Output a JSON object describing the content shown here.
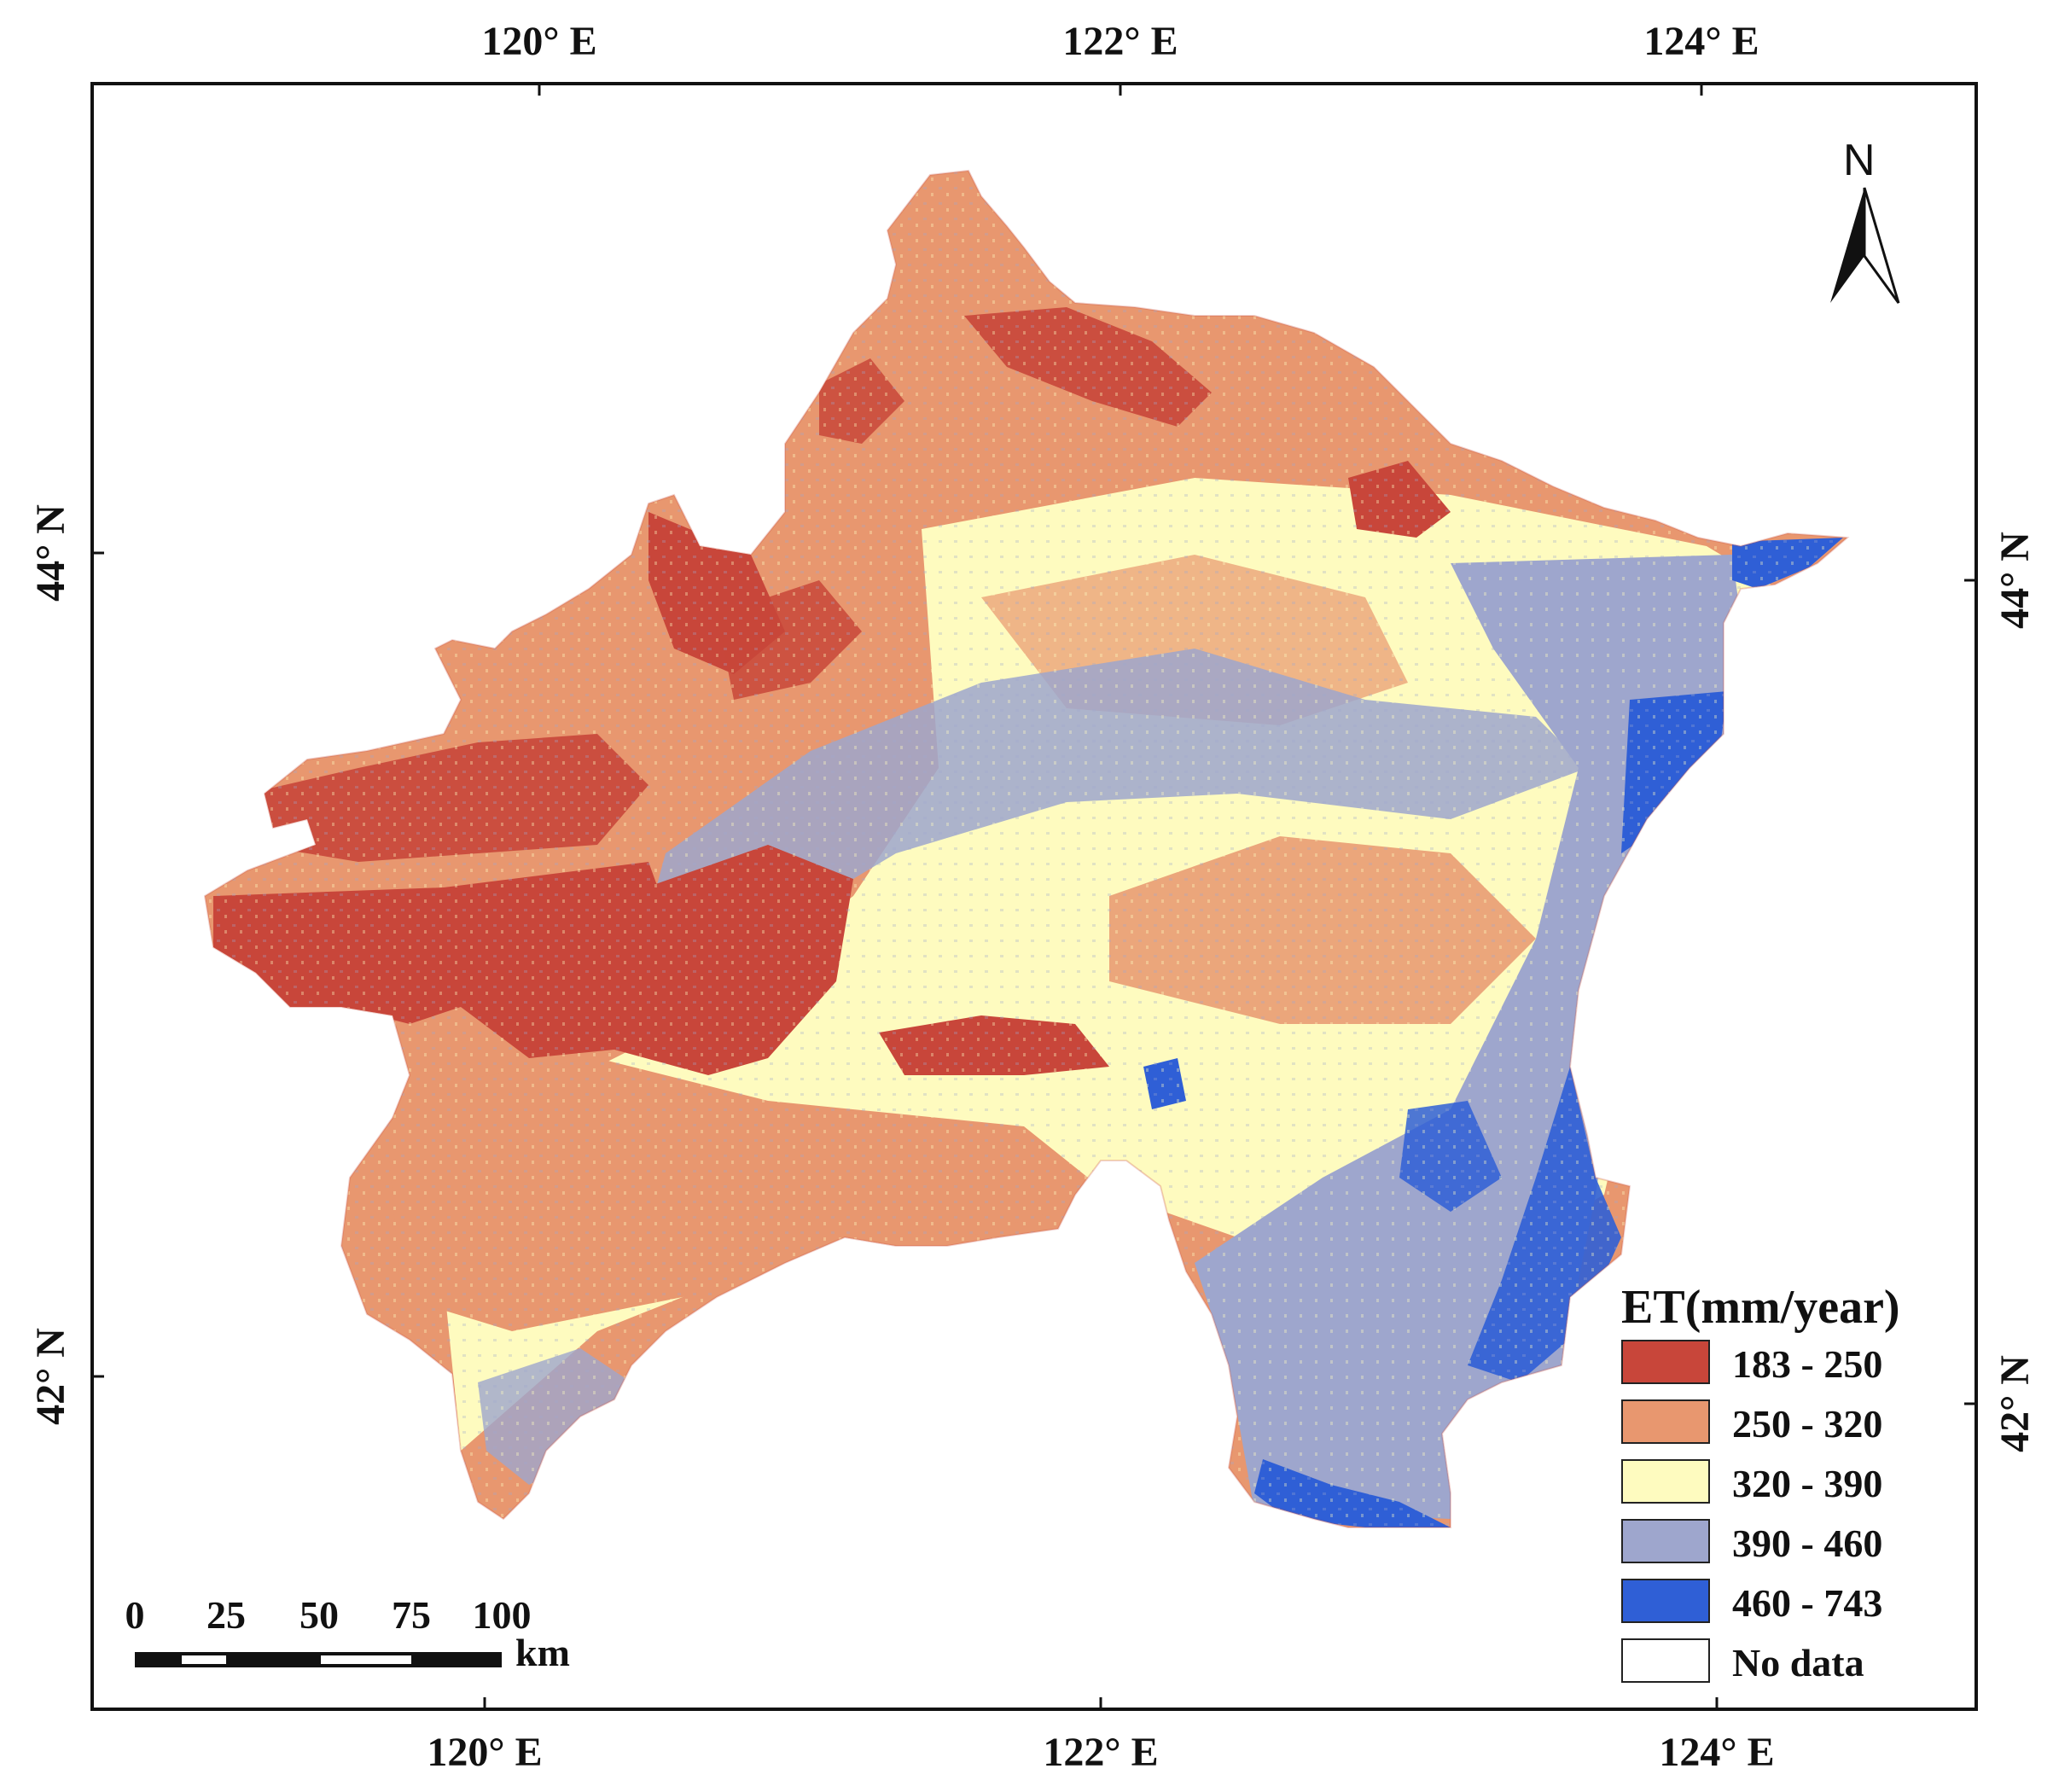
{
  "map": {
    "graticule": {
      "top_labels": [
        "120° E",
        "122° E",
        "124° E"
      ],
      "bottom_labels": [
        "120° E",
        "122° E",
        "124° E"
      ],
      "left_labels": [
        "44° N",
        "42° N"
      ],
      "right_labels": [
        "44° N",
        "42° N"
      ]
    },
    "north_arrow": {
      "label": "N",
      "icon": "north-arrow-icon"
    },
    "scale_bar": {
      "ticks": [
        "0",
        "25",
        "50",
        "75",
        "100"
      ],
      "unit": "km"
    },
    "legend": {
      "title": "ET(mm/year)",
      "items": [
        {
          "label": "183 - 250",
          "color": "#c8463a"
        },
        {
          "label": "250 - 320",
          "color": "#e8976f"
        },
        {
          "label": "320 - 390",
          "color": "#fefbbf"
        },
        {
          "label": "390 - 460",
          "color": "#9ea6cd"
        },
        {
          "label": "460 - 743",
          "color": "#2f5fd6"
        },
        {
          "label": "No data",
          "color": "#ffffff"
        }
      ]
    },
    "colors": {
      "frame": "#111111",
      "background": "#ffffff"
    }
  }
}
